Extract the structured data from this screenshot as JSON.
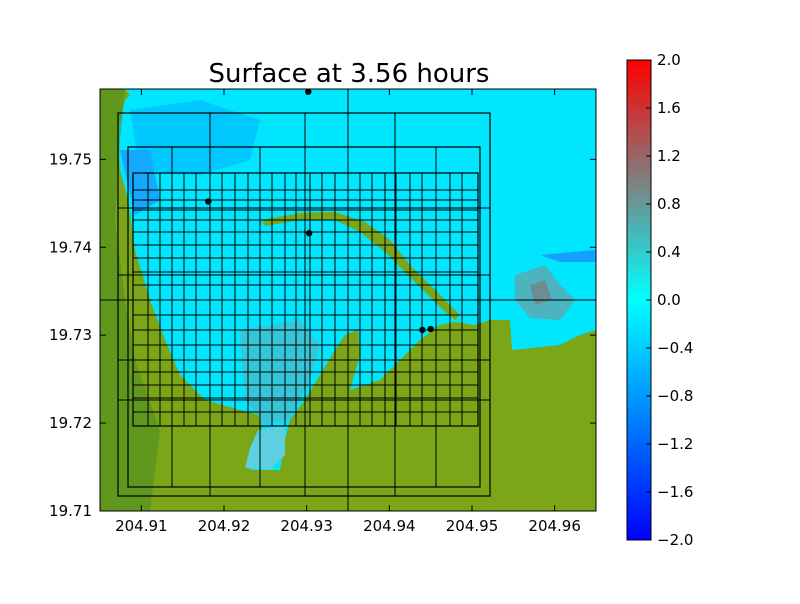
{
  "chart_data": {
    "type": "heatmap",
    "title": "Surface at 3.56 hours",
    "xlabel": "",
    "ylabel": "",
    "xlim": [
      204.905,
      204.965
    ],
    "ylim": [
      19.71,
      19.758
    ],
    "x_ticks": [
      "204.91",
      "204.92",
      "204.93",
      "204.94",
      "204.95",
      "204.96"
    ],
    "y_ticks": [
      "19.71",
      "19.72",
      "19.73",
      "19.74",
      "19.75"
    ],
    "colorbar": {
      "range": [
        -2.0,
        2.0
      ],
      "ticks": [
        "2.0",
        "1.6",
        "1.2",
        "0.8",
        "0.4",
        "0.0",
        "−0.4",
        "−0.8",
        "−1.2",
        "−1.6",
        "−2.0"
      ],
      "colors": [
        "#0000ff",
        "#00ffff",
        "#7f7f7f",
        "#ff0000"
      ]
    },
    "land_color": "#7ba617",
    "water_color": "#00e6ff",
    "gauges": [
      {
        "x": 204.9302,
        "y": 19.7577
      },
      {
        "x": 204.9181,
        "y": 19.7452
      },
      {
        "x": 204.9303,
        "y": 19.7416
      },
      {
        "x": 204.944,
        "y": 19.7306
      },
      {
        "x": 204.945,
        "y": 19.7307
      }
    ],
    "grid_lines_x": [
      204.935
    ],
    "grid_lines_y": [
      19.734
    ]
  }
}
